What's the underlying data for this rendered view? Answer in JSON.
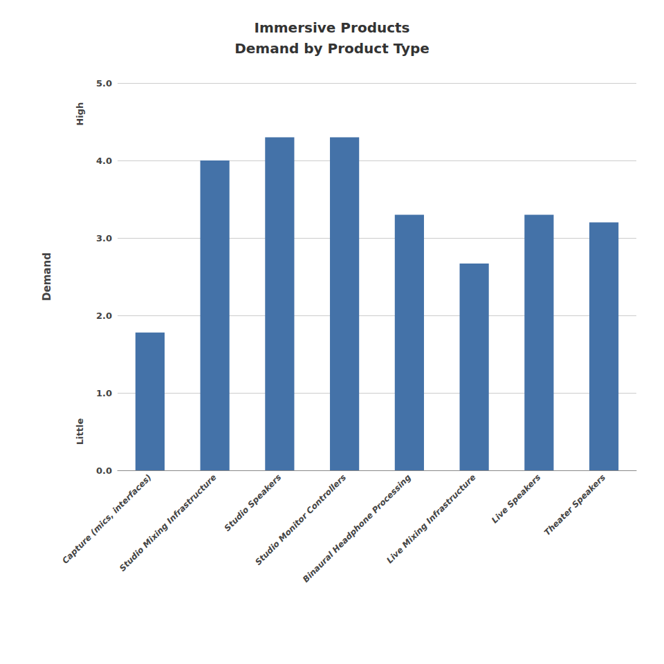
{
  "chart_data": {
    "type": "bar",
    "title": "Immersive Products\nDemand by Product Type",
    "categories": [
      "Capture (mics, interfaces)",
      "Studio Mixing Infrastructure",
      "Studio Speakers",
      "Studio Monitor Controllers",
      "Binaural Headphone Processing",
      "Live Mixing Infrastructure",
      "Live Speakers",
      "Theater Speakers"
    ],
    "values": [
      1.78,
      4.0,
      4.3,
      4.3,
      3.3,
      2.67,
      3.3,
      3.2
    ],
    "color": "#4472a8",
    "ylabel": "Demand",
    "annotations": [
      "High",
      "Little"
    ],
    "ylim": [
      0,
      5.0
    ],
    "yticks": [
      {
        "value": 0.0,
        "label": "0.0"
      },
      {
        "value": 1.0,
        "label": "1.0"
      },
      {
        "value": 2.0,
        "label": "2.0"
      },
      {
        "value": 3.0,
        "label": "3.0"
      },
      {
        "value": 4.0,
        "label": "4.0"
      },
      {
        "value": 5.0,
        "label": "5.0"
      }
    ],
    "grid": true
  }
}
